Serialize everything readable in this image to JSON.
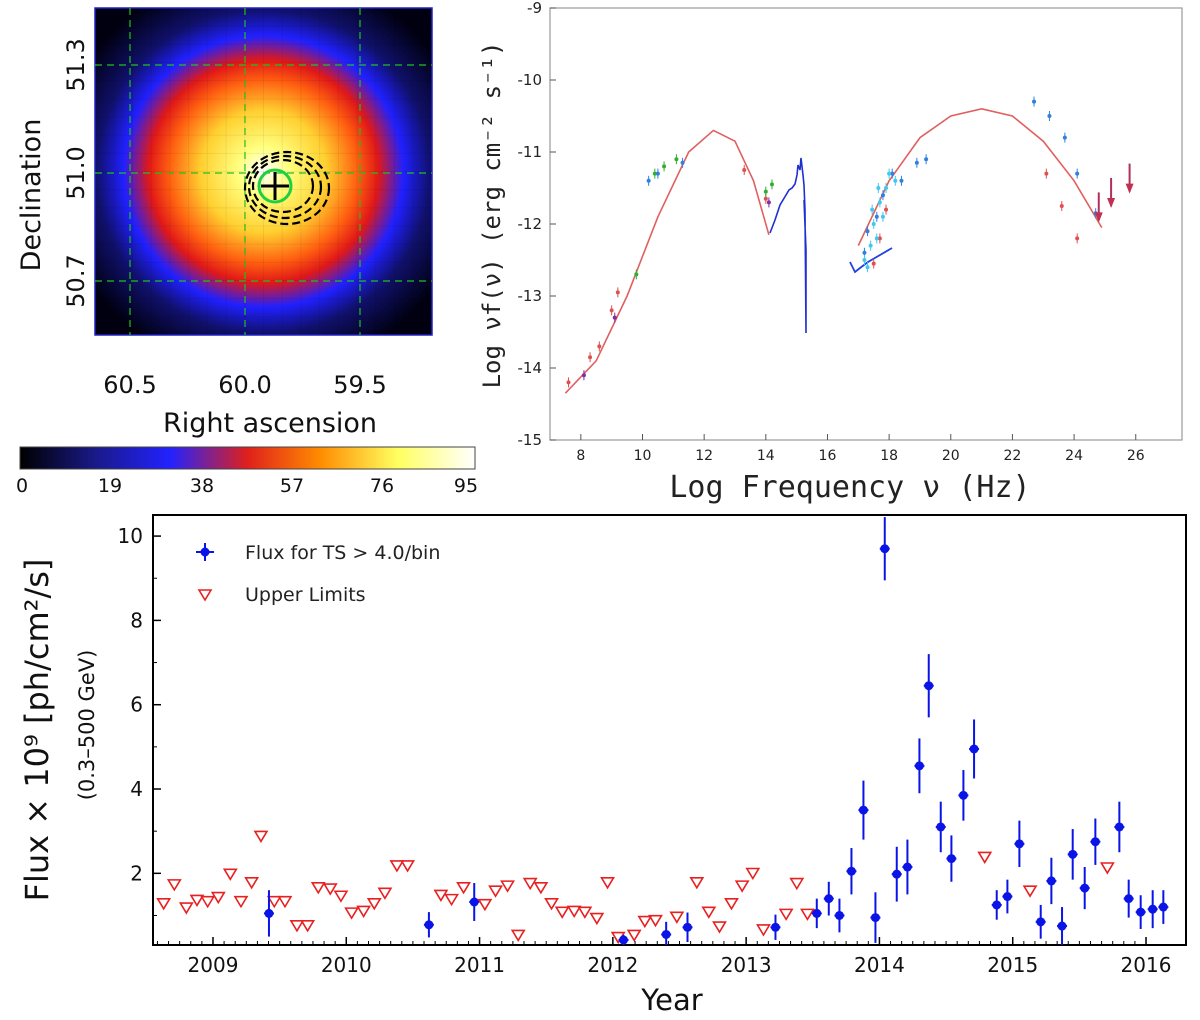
{
  "chart_data": [
    {
      "type": "heatmap",
      "xlabel": "Right ascension",
      "ylabel": "Declination",
      "x_ticks": [
        "60.5",
        "60.0",
        "59.5"
      ],
      "y_ticks": [
        "51.3",
        "51.0",
        "50.7"
      ],
      "colorbar_ticks": [
        "0",
        "19",
        "38",
        "57",
        "76",
        "95"
      ],
      "colorbar_range": [
        0,
        95
      ],
      "colormap": [
        "#000000",
        "#1a1a8c",
        "#2222ff",
        "#e0201c",
        "#ff8c00",
        "#ffff60",
        "#ffffff"
      ],
      "grid": true,
      "source_marker": "cross with green circle and dashed confidence contours"
    },
    {
      "type": "scatter",
      "xlabel": "Log Frequency ν (Hz)",
      "ylabel": "Log νf(ν) (erg cm⁻² s⁻¹)",
      "x_ticks": [
        "8",
        "10",
        "12",
        "14",
        "16",
        "18",
        "20",
        "22",
        "24",
        "26"
      ],
      "y_ticks": [
        "-9",
        "-10",
        "-11",
        "-12",
        "-13",
        "-14",
        "-15"
      ],
      "xlim": [
        7,
        27.5
      ],
      "ylim": [
        -15,
        -9
      ],
      "model_curves": [
        {
          "color": "#e06060",
          "x": [
            7.5,
            8.5,
            9.5,
            10.5,
            11.5,
            12.3,
            13.0,
            13.6,
            14.1
          ],
          "y": [
            -14.35,
            -13.9,
            -13.0,
            -11.9,
            -11.0,
            -10.7,
            -10.85,
            -11.4,
            -12.15
          ]
        },
        {
          "color": "#e06060",
          "x": [
            17.0,
            18.0,
            19.0,
            20.0,
            21.0,
            22.0,
            23.0,
            24.0,
            24.9
          ],
          "y": [
            -12.3,
            -11.4,
            -10.8,
            -10.5,
            -10.4,
            -10.5,
            -10.85,
            -11.4,
            -12.05
          ]
        }
      ],
      "series": [
        {
          "color": "#e05050",
          "points": [
            [
              7.6,
              -14.2
            ],
            [
              8.3,
              -13.85
            ],
            [
              8.6,
              -13.7
            ],
            [
              9.0,
              -13.2
            ],
            [
              9.2,
              -12.95
            ],
            [
              13.3,
              -11.25
            ],
            [
              14.0,
              -11.65
            ],
            [
              23.1,
              -11.3
            ],
            [
              23.6,
              -11.75
            ],
            [
              24.1,
              -12.2
            ],
            [
              17.5,
              -12.55
            ],
            [
              17.7,
              -12.2
            ],
            [
              17.9,
              -11.8
            ]
          ]
        },
        {
          "color": "#30b030",
          "points": [
            [
              10.4,
              -11.3
            ],
            [
              10.7,
              -11.2
            ],
            [
              11.1,
              -11.1
            ],
            [
              14.0,
              -11.55
            ],
            [
              14.2,
              -11.45
            ],
            [
              9.8,
              -12.7
            ]
          ]
        },
        {
          "color": "#3080e0",
          "points": [
            [
              10.2,
              -11.4
            ],
            [
              10.5,
              -11.3
            ],
            [
              11.3,
              -11.15
            ],
            [
              17.2,
              -12.4
            ],
            [
              17.3,
              -12.1
            ],
            [
              17.6,
              -11.9
            ],
            [
              17.8,
              -11.6
            ],
            [
              18.1,
              -11.3
            ],
            [
              18.4,
              -11.4
            ],
            [
              18.9,
              -11.15
            ],
            [
              19.2,
              -11.1
            ],
            [
              22.7,
              -10.3
            ],
            [
              23.2,
              -10.5
            ],
            [
              23.7,
              -10.8
            ],
            [
              24.1,
              -11.3
            ],
            [
              24.7,
              -11.85
            ]
          ]
        },
        {
          "color": "#40c8f0",
          "points": [
            [
              17.2,
              -12.5
            ],
            [
              17.4,
              -12.3
            ],
            [
              17.5,
              -12.0
            ],
            [
              17.7,
              -11.7
            ],
            [
              17.9,
              -11.5
            ],
            [
              18.0,
              -11.3
            ],
            [
              17.3,
              -12.6
            ],
            [
              17.6,
              -12.2
            ],
            [
              17.8,
              -11.9
            ],
            [
              18.2,
              -11.4
            ],
            [
              17.45,
              -11.8
            ],
            [
              17.65,
              -11.5
            ]
          ]
        },
        {
          "color": "#8030a0",
          "points": [
            [
              9.1,
              -13.3
            ],
            [
              14.1,
              -11.7
            ],
            [
              8.1,
              -14.1
            ]
          ]
        }
      ],
      "upper_limits": [
        [
          24.8,
          -11.95
        ],
        [
          25.2,
          -11.75
        ],
        [
          25.8,
          -11.55
        ]
      ]
    },
    {
      "type": "scatter",
      "xlabel": "Year",
      "ylabel": "Flux × 10⁹ [ph/cm²/s]",
      "ylabel_sub": "(0.3–500 GeV)",
      "x_ticks": [
        "2009",
        "2010",
        "2011",
        "2012",
        "2013",
        "2014",
        "2015",
        "2016"
      ],
      "y_ticks": [
        "2",
        "4",
        "6",
        "8",
        "10"
      ],
      "xlim": [
        2008.55,
        2016.3
      ],
      "ylim": [
        0.3,
        10.5
      ],
      "legend": [
        "Flux for TS > 4.0/bin",
        "Upper Limits"
      ],
      "legend_position": "top-left",
      "series": [
        {
          "name": "Flux for TS > 4.0/bin",
          "color": "#0a14e6",
          "points": [
            [
              2009.42,
              1.05,
              0.55
            ],
            [
              2010.62,
              0.78,
              0.3
            ],
            [
              2010.96,
              1.32,
              0.45
            ],
            [
              2012.08,
              0.42,
              0.12
            ],
            [
              2012.4,
              0.55,
              0.3
            ],
            [
              2012.56,
              0.72,
              0.35
            ],
            [
              2013.22,
              0.72,
              0.3
            ],
            [
              2013.53,
              1.05,
              0.35
            ],
            [
              2013.62,
              1.4,
              0.4
            ],
            [
              2013.7,
              1.0,
              0.4
            ],
            [
              2013.79,
              2.05,
              0.55
            ],
            [
              2013.88,
              3.5,
              0.7
            ],
            [
              2013.97,
              0.95,
              0.6
            ],
            [
              2014.04,
              9.7,
              0.75
            ],
            [
              2014.13,
              1.98,
              0.65
            ],
            [
              2014.21,
              2.15,
              0.65
            ],
            [
              2014.3,
              4.55,
              0.65
            ],
            [
              2014.37,
              6.45,
              0.75
            ],
            [
              2014.46,
              3.1,
              0.6
            ],
            [
              2014.54,
              2.35,
              0.55
            ],
            [
              2014.63,
              3.85,
              0.6
            ],
            [
              2014.71,
              4.95,
              0.7
            ],
            [
              2014.88,
              1.25,
              0.35
            ],
            [
              2014.96,
              1.45,
              0.4
            ],
            [
              2015.05,
              2.7,
              0.55
            ],
            [
              2015.21,
              0.85,
              0.4
            ],
            [
              2015.29,
              1.82,
              0.55
            ],
            [
              2015.37,
              0.75,
              0.45
            ],
            [
              2015.45,
              2.45,
              0.6
            ],
            [
              2015.54,
              1.65,
              0.5
            ],
            [
              2015.62,
              2.75,
              0.55
            ],
            [
              2015.8,
              3.1,
              0.6
            ],
            [
              2015.87,
              1.4,
              0.45
            ],
            [
              2015.96,
              1.08,
              0.4
            ],
            [
              2016.05,
              1.15,
              0.45
            ],
            [
              2016.13,
              1.2,
              0.4
            ]
          ]
        },
        {
          "name": "Upper Limits",
          "color": "#e82020",
          "points": [
            [
              2008.63,
              1.3
            ],
            [
              2008.71,
              1.75
            ],
            [
              2008.8,
              1.2
            ],
            [
              2008.88,
              1.38
            ],
            [
              2008.96,
              1.35
            ],
            [
              2009.04,
              1.45
            ],
            [
              2009.13,
              2.0
            ],
            [
              2009.21,
              1.35
            ],
            [
              2009.29,
              1.8
            ],
            [
              2009.36,
              2.9
            ],
            [
              2009.46,
              1.35
            ],
            [
              2009.54,
              1.35
            ],
            [
              2009.63,
              0.78
            ],
            [
              2009.71,
              0.78
            ],
            [
              2009.79,
              1.68
            ],
            [
              2009.88,
              1.65
            ],
            [
              2009.96,
              1.48
            ],
            [
              2010.04,
              1.08
            ],
            [
              2010.13,
              1.12
            ],
            [
              2010.21,
              1.3
            ],
            [
              2010.29,
              1.55
            ],
            [
              2010.38,
              2.2
            ],
            [
              2010.46,
              2.2
            ],
            [
              2010.71,
              1.5
            ],
            [
              2010.79,
              1.4
            ],
            [
              2010.88,
              1.68
            ],
            [
              2011.04,
              1.28
            ],
            [
              2011.12,
              1.6
            ],
            [
              2011.21,
              1.72
            ],
            [
              2011.29,
              0.55
            ],
            [
              2011.38,
              1.78
            ],
            [
              2011.46,
              1.68
            ],
            [
              2011.54,
              1.3
            ],
            [
              2011.62,
              1.1
            ],
            [
              2011.71,
              1.12
            ],
            [
              2011.79,
              1.1
            ],
            [
              2011.88,
              0.95
            ],
            [
              2011.96,
              1.8
            ],
            [
              2012.04,
              0.5
            ],
            [
              2012.16,
              0.55
            ],
            [
              2012.24,
              0.88
            ],
            [
              2012.32,
              0.9
            ],
            [
              2012.48,
              0.98
            ],
            [
              2012.63,
              1.8
            ],
            [
              2012.72,
              1.1
            ],
            [
              2012.8,
              0.75
            ],
            [
              2012.89,
              1.3
            ],
            [
              2012.97,
              1.72
            ],
            [
              2013.05,
              2.02
            ],
            [
              2013.13,
              0.68
            ],
            [
              2013.3,
              1.05
            ],
            [
              2013.38,
              1.78
            ],
            [
              2013.46,
              1.05
            ],
            [
              2014.79,
              2.4
            ],
            [
              2015.13,
              1.6
            ],
            [
              2015.71,
              2.15
            ]
          ]
        }
      ]
    }
  ]
}
